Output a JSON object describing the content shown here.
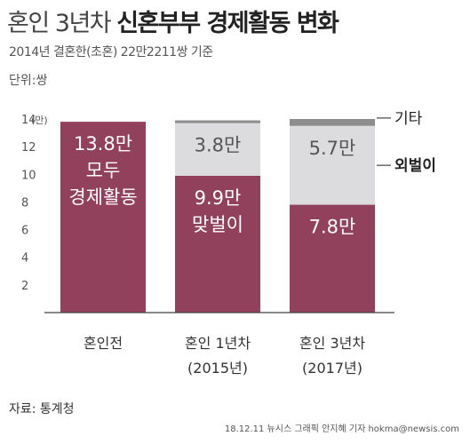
{
  "header": {
    "title_prefix": "혼인 3년차 ",
    "title_strong": "신혼부부 경제활동 변화",
    "subtitle": "2014년 결혼한(초혼) 22만2211쌍 기준",
    "unit": "단위:쌍"
  },
  "footer": {
    "source": "자료: 통계청",
    "credit": "18.12.11 뉴시스 그래픽 안지혜 기자 hokma@newsis.com"
  },
  "chart_data": {
    "type": "bar",
    "stacked": true,
    "y_axis_unit": "(만)",
    "ylim": [
      0,
      14
    ],
    "yticks": [
      2,
      4,
      6,
      8,
      10,
      12,
      14
    ],
    "categories": [
      {
        "line1": "혼인전",
        "line2": ""
      },
      {
        "line1": "혼인 1년차",
        "line2": "(2015년)"
      },
      {
        "line1": "혼인 3년차",
        "line2": "(2017년)"
      }
    ],
    "series": [
      {
        "name": "",
        "color": "#92415c",
        "values": [
          13.8,
          9.9,
          7.8
        ],
        "labels": [
          [
            "13.8만",
            "모두",
            "경제활동"
          ],
          [
            "9.9만",
            "맞벌이"
          ],
          [
            "7.8만"
          ]
        ]
      },
      {
        "name": "외벌이",
        "color": "#dcdcdf",
        "values": [
          0,
          3.8,
          5.7
        ],
        "labels": [
          [],
          [
            "3.8만"
          ],
          [
            "5.7만"
          ]
        ]
      },
      {
        "name": "기타",
        "color": "#8d8d8d",
        "values": [
          0,
          0.2,
          0.5
        ],
        "labels": [
          [],
          [],
          []
        ]
      }
    ],
    "legend_position": "right"
  }
}
